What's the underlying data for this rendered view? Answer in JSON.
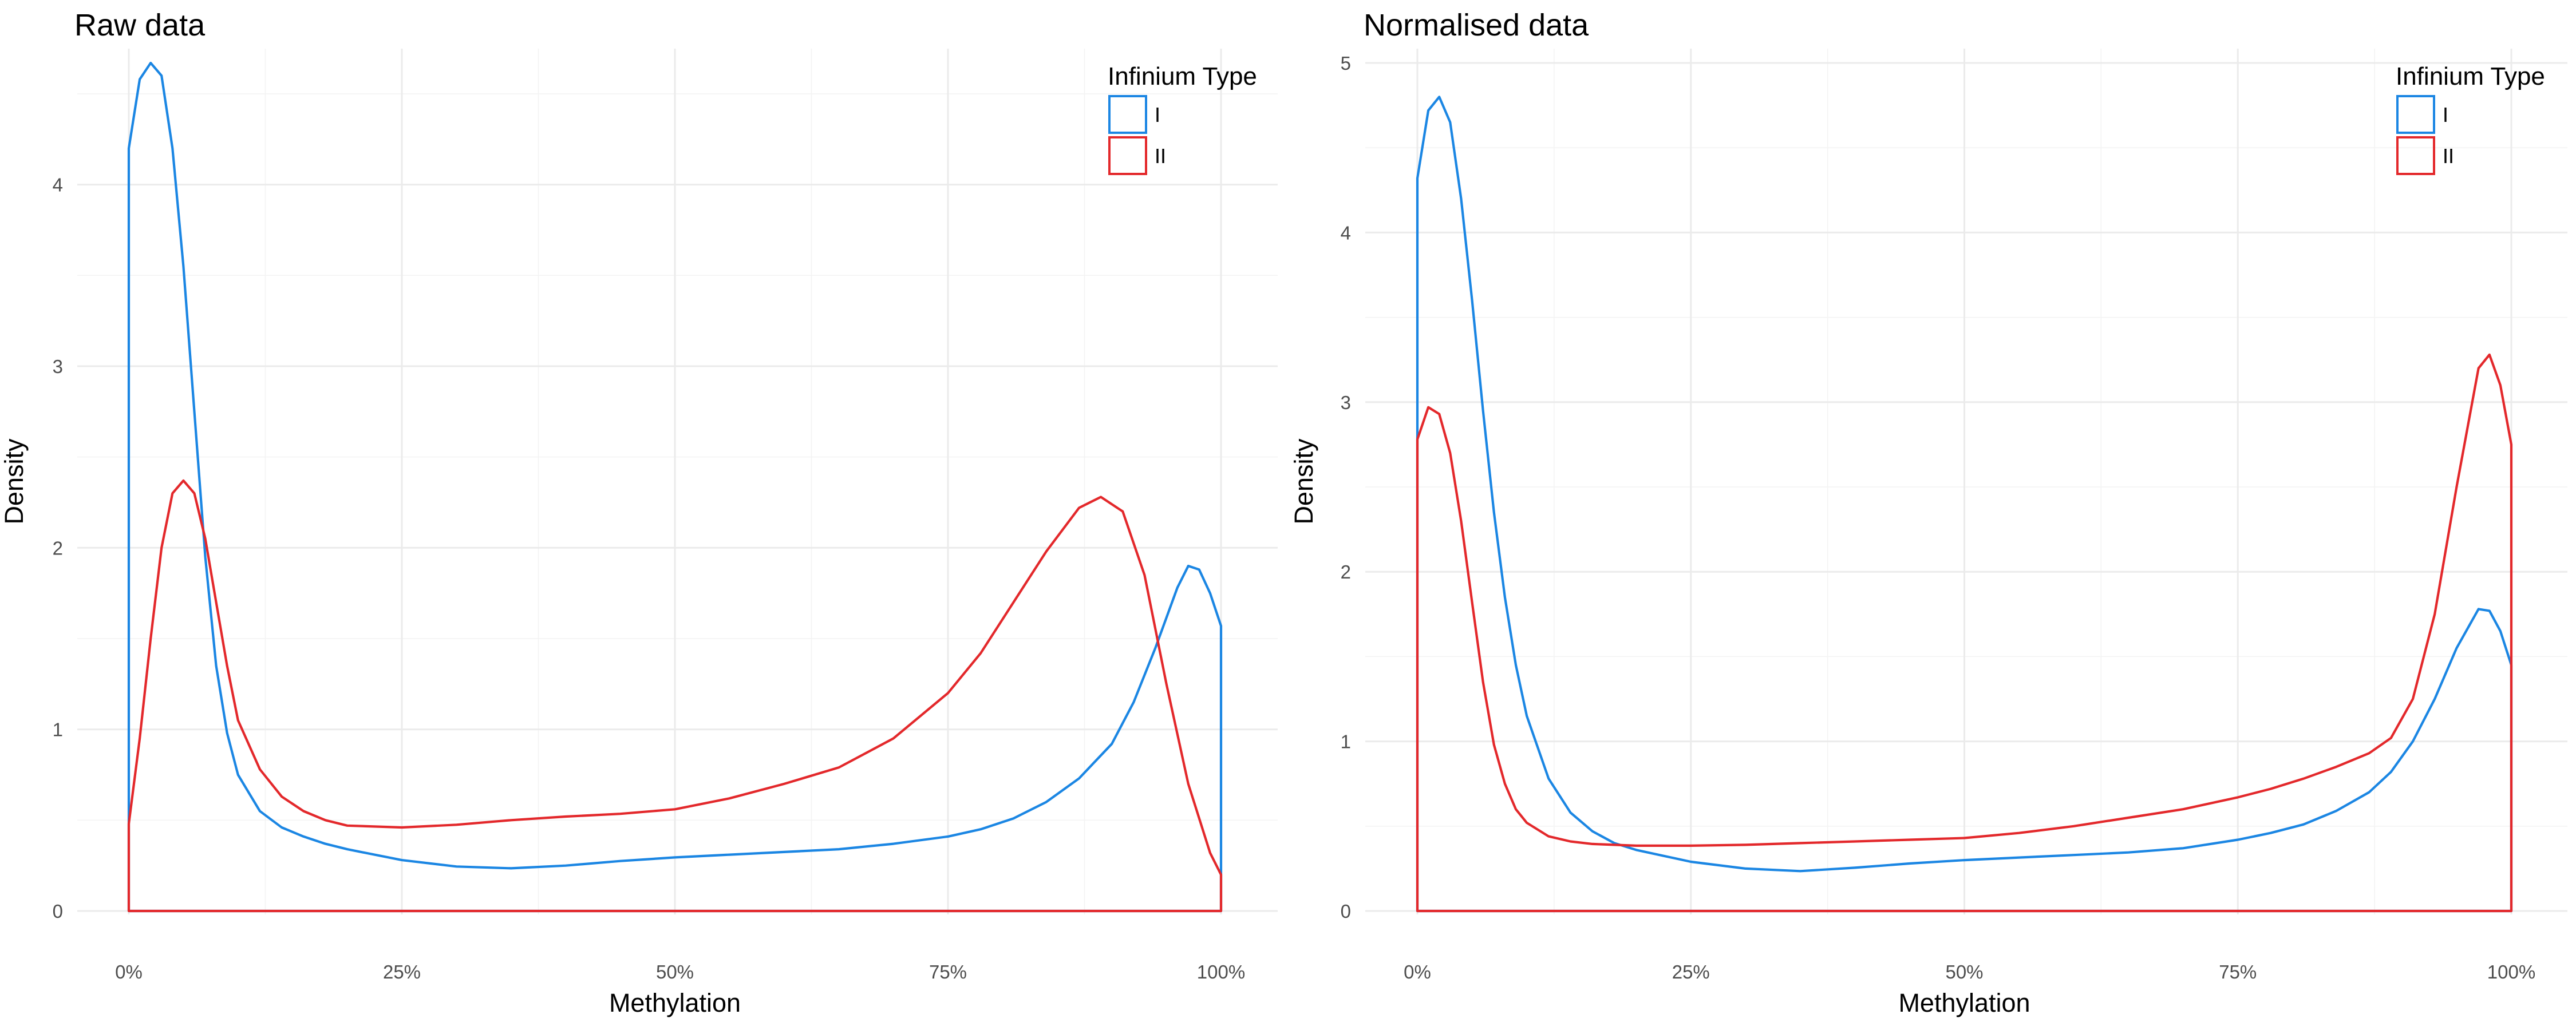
{
  "chart_data": [
    {
      "type": "area",
      "title": "Raw data",
      "xlabel": "Methylation",
      "ylabel": "Density",
      "xlim": [
        0,
        1
      ],
      "ylim": [
        0,
        4.67
      ],
      "x_ticks": [
        0,
        0.25,
        0.5,
        0.75,
        1
      ],
      "x_tick_labels": [
        "0%",
        "25%",
        "50%",
        "75%",
        "100%"
      ],
      "y_ticks": [
        0,
        1,
        2,
        3,
        4
      ],
      "y_tick_labels": [
        "0",
        "1",
        "2",
        "3",
        "4"
      ],
      "grid": true,
      "legend": {
        "title": "Infinium Type",
        "placement": "top-right",
        "entries": [
          "I",
          "II"
        ]
      },
      "series": [
        {
          "name": "I",
          "color": "#1b86e3",
          "x": [
            0,
            0.01,
            0.02,
            0.03,
            0.04,
            0.05,
            0.06,
            0.07,
            0.08,
            0.09,
            0.1,
            0.12,
            0.14,
            0.16,
            0.18,
            0.2,
            0.25,
            0.3,
            0.35,
            0.4,
            0.45,
            0.5,
            0.55,
            0.6,
            0.65,
            0.7,
            0.75,
            0.78,
            0.81,
            0.84,
            0.87,
            0.9,
            0.92,
            0.94,
            0.96,
            0.97,
            0.98,
            0.99,
            1.0
          ],
          "y": [
            4.2,
            4.58,
            4.67,
            4.6,
            4.2,
            3.55,
            2.75,
            1.95,
            1.35,
            0.98,
            0.75,
            0.55,
            0.46,
            0.41,
            0.37,
            0.34,
            0.28,
            0.245,
            0.235,
            0.25,
            0.275,
            0.295,
            0.31,
            0.325,
            0.34,
            0.37,
            0.41,
            0.45,
            0.51,
            0.6,
            0.73,
            0.92,
            1.15,
            1.45,
            1.78,
            1.9,
            1.88,
            1.75,
            1.57
          ]
        },
        {
          "name": "II",
          "color": "#e3282b",
          "x": [
            0,
            0.01,
            0.02,
            0.03,
            0.04,
            0.05,
            0.06,
            0.07,
            0.08,
            0.09,
            0.1,
            0.12,
            0.14,
            0.16,
            0.18,
            0.2,
            0.25,
            0.3,
            0.35,
            0.4,
            0.45,
            0.5,
            0.55,
            0.6,
            0.65,
            0.7,
            0.75,
            0.78,
            0.81,
            0.84,
            0.87,
            0.89,
            0.91,
            0.93,
            0.95,
            0.97,
            0.99,
            1.0
          ],
          "y": [
            0.48,
            0.95,
            1.5,
            2.0,
            2.3,
            2.37,
            2.3,
            2.05,
            1.7,
            1.35,
            1.05,
            0.78,
            0.63,
            0.55,
            0.5,
            0.47,
            0.46,
            0.475,
            0.5,
            0.52,
            0.535,
            0.56,
            0.62,
            0.7,
            0.79,
            0.95,
            1.2,
            1.42,
            1.7,
            1.98,
            2.22,
            2.28,
            2.2,
            1.85,
            1.25,
            0.7,
            0.32,
            0.2
          ]
        }
      ]
    },
    {
      "type": "area",
      "title": "Normalised data",
      "xlabel": "Methylation",
      "ylabel": "Density",
      "xlim": [
        0,
        1
      ],
      "ylim": [
        0,
        5.0
      ],
      "x_ticks": [
        0,
        0.25,
        0.5,
        0.75,
        1
      ],
      "x_tick_labels": [
        "0%",
        "25%",
        "50%",
        "75%",
        "100%"
      ],
      "y_ticks": [
        0,
        1,
        2,
        3,
        4,
        5
      ],
      "y_tick_labels": [
        "0",
        "1",
        "2",
        "3",
        "4",
        "5"
      ],
      "grid": true,
      "legend": {
        "title": "Infinium Type",
        "placement": "top-right",
        "entries": [
          "I",
          "II"
        ]
      },
      "series": [
        {
          "name": "I",
          "color": "#1b86e3",
          "x": [
            0,
            0.01,
            0.02,
            0.03,
            0.04,
            0.05,
            0.06,
            0.07,
            0.08,
            0.09,
            0.1,
            0.12,
            0.14,
            0.16,
            0.18,
            0.2,
            0.25,
            0.3,
            0.35,
            0.4,
            0.45,
            0.5,
            0.55,
            0.6,
            0.65,
            0.7,
            0.75,
            0.78,
            0.81,
            0.84,
            0.87,
            0.89,
            0.91,
            0.93,
            0.95,
            0.97,
            0.98,
            0.99,
            1.0
          ],
          "y": [
            4.32,
            4.72,
            4.8,
            4.65,
            4.2,
            3.6,
            2.95,
            2.35,
            1.85,
            1.45,
            1.15,
            0.78,
            0.58,
            0.47,
            0.4,
            0.36,
            0.29,
            0.25,
            0.235,
            0.255,
            0.28,
            0.3,
            0.315,
            0.33,
            0.345,
            0.37,
            0.42,
            0.46,
            0.51,
            0.59,
            0.7,
            0.82,
            1.0,
            1.25,
            1.55,
            1.78,
            1.77,
            1.65,
            1.45
          ]
        },
        {
          "name": "II",
          "color": "#e3282b",
          "x": [
            0,
            0.01,
            0.02,
            0.03,
            0.04,
            0.05,
            0.06,
            0.07,
            0.08,
            0.09,
            0.1,
            0.12,
            0.14,
            0.16,
            0.18,
            0.2,
            0.25,
            0.3,
            0.35,
            0.4,
            0.45,
            0.5,
            0.55,
            0.6,
            0.65,
            0.7,
            0.75,
            0.78,
            0.81,
            0.84,
            0.87,
            0.89,
            0.91,
            0.93,
            0.95,
            0.97,
            0.98,
            0.99,
            1.0
          ],
          "y": [
            2.78,
            2.97,
            2.93,
            2.7,
            2.3,
            1.82,
            1.35,
            0.98,
            0.75,
            0.6,
            0.52,
            0.44,
            0.41,
            0.395,
            0.39,
            0.385,
            0.385,
            0.39,
            0.4,
            0.41,
            0.42,
            0.43,
            0.46,
            0.5,
            0.55,
            0.6,
            0.67,
            0.72,
            0.78,
            0.85,
            0.93,
            1.02,
            1.25,
            1.75,
            2.5,
            3.2,
            3.28,
            3.1,
            2.75
          ]
        }
      ]
    }
  ]
}
